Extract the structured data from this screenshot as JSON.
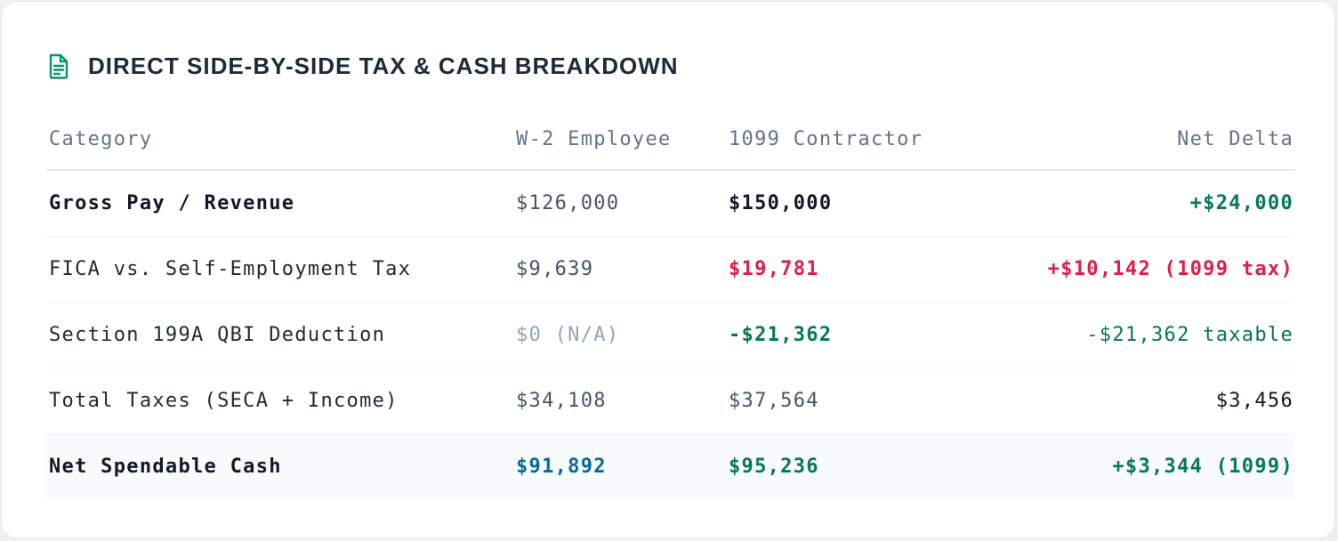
{
  "title": "DIRECT SIDE-BY-SIDE TAX & CASH BREAKDOWN",
  "icon": "document-icon",
  "colors": {
    "accent_green": "#059669",
    "negative_red": "#e11d48",
    "positive_green": "#047857",
    "w2_blue": "#0369a1"
  },
  "table": {
    "headers": [
      "Category",
      "W-2 Employee",
      "1099 Contractor",
      "Net Delta"
    ],
    "rows": [
      [
        "Gross Pay / Revenue",
        "$126,000",
        "$150,000",
        "+$24,000"
      ],
      [
        "FICA vs. Self-Employment Tax",
        "$9,639",
        "$19,781",
        "+$10,142 (1099 tax)"
      ],
      [
        "Section 199A QBI Deduction",
        "$0 (N/A)",
        "-$21,362",
        "-$21,362 taxable"
      ],
      [
        "Total Taxes (SECA + Income)",
        "$34,108",
        "$37,564",
        "$3,456"
      ],
      [
        "Net Spendable Cash",
        "$91,892",
        "$95,236",
        "+$3,344 (1099)"
      ]
    ]
  }
}
